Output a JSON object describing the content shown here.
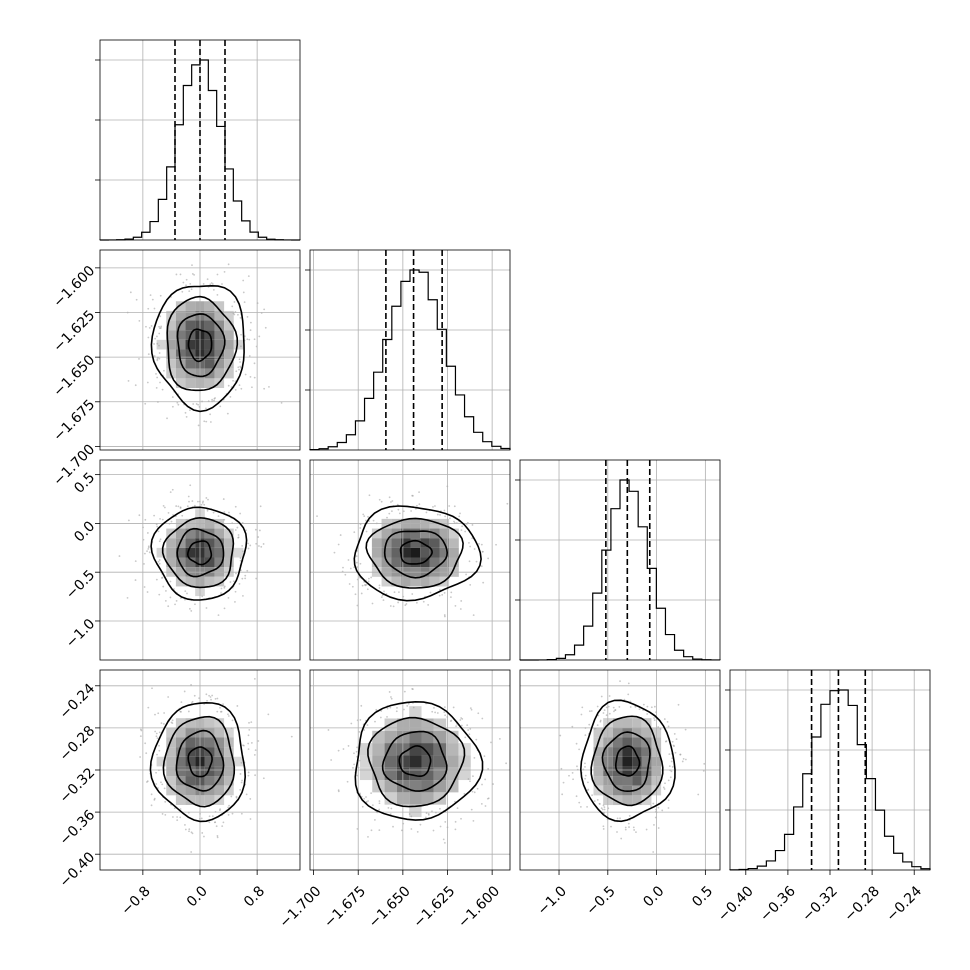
{
  "chart_data": {
    "type": "corner",
    "parameters": [
      {
        "id": "p0",
        "range": [
          -1.4,
          1.4
        ],
        "mean": 0.0,
        "sd": 0.3,
        "quantiles": [
          -0.35,
          0.0,
          0.35
        ],
        "ticks": [
          -0.8,
          0.0,
          0.8
        ],
        "tick_labels": [
          "−0.8",
          "0.0",
          "0.8"
        ],
        "hist_bins": [
          -1.4,
          1.4,
          24
        ],
        "hist_peak_fraction": 0.9
      },
      {
        "id": "p1",
        "range": [
          -1.702,
          -1.59
        ],
        "mean": -1.643,
        "sd": 0.0162,
        "quantiles": [
          -1.6595,
          -1.644,
          -1.628
        ],
        "ticks": [
          -1.7,
          -1.675,
          -1.65,
          -1.625,
          -1.6
        ],
        "tick_labels": [
          "−1.700",
          "−1.675",
          "−1.650",
          "−1.625",
          "−1.600"
        ],
        "hist_bins": [
          -1.702,
          -1.59,
          22
        ],
        "hist_peak_fraction": 0.9
      },
      {
        "id": "p2",
        "range": [
          -1.4,
          0.65
        ],
        "mean": -0.3,
        "sd": 0.22,
        "quantiles": [
          -0.52,
          -0.3,
          -0.07
        ],
        "ticks": [
          -1.0,
          -0.5,
          0.0,
          0.5
        ],
        "tick_labels": [
          "−1.0",
          "−0.5",
          "0.0",
          "0.5"
        ],
        "hist_bins": [
          -1.4,
          0.65,
          22
        ],
        "hist_peak_fraction": 0.9
      },
      {
        "id": "p3",
        "range": [
          -0.415,
          -0.225
        ],
        "mean": -0.312,
        "sd": 0.026,
        "quantiles": [
          -0.3375,
          -0.312,
          -0.2865
        ],
        "ticks": [
          -0.4,
          -0.36,
          -0.32,
          -0.28,
          -0.24
        ],
        "tick_labels": [
          "−0.40",
          "−0.36",
          "−0.32",
          "−0.28",
          "−0.24"
        ],
        "hist_bins": [
          -0.415,
          -0.225,
          22
        ],
        "hist_peak_fraction": 0.9
      }
    ],
    "contour_levels_sigma": [
      0.5,
      1.0,
      1.5,
      2.0
    ],
    "grid": true,
    "scatter_color": "#9a9a9a",
    "line_color": "#000000"
  }
}
